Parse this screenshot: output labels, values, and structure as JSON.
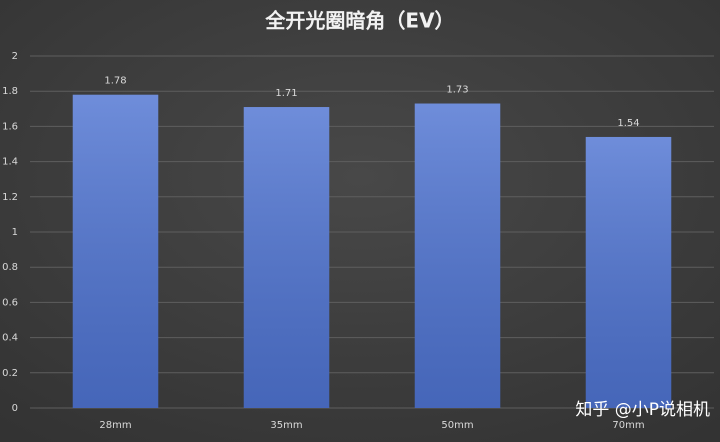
{
  "chart_data": {
    "type": "bar",
    "title": "全开光圈暗角（EV）",
    "categories": [
      "28mm",
      "35mm",
      "50mm",
      "70mm"
    ],
    "values": [
      1.78,
      1.71,
      1.73,
      1.54
    ],
    "color": "#4f74d2",
    "ylim": [
      0,
      2
    ],
    "yticks": [
      0,
      0.2,
      0.4,
      0.6,
      0.8,
      1,
      1.2,
      1.4,
      1.6,
      1.8,
      2
    ],
    "grid": true,
    "data_labels": true
  },
  "watermark": "知乎 @小P说相机"
}
